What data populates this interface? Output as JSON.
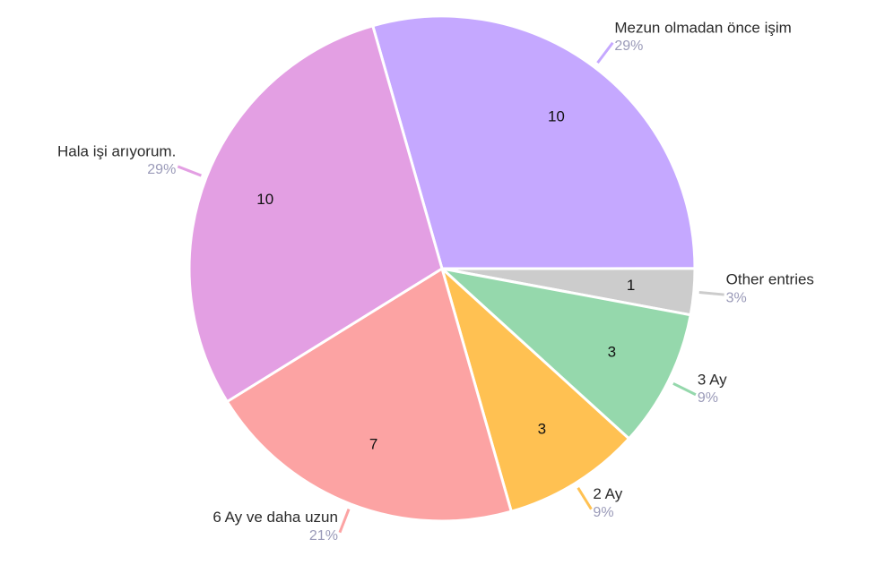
{
  "chart_data": {
    "type": "pie",
    "categories": [
      "Mezun olmadan önce işim",
      "Other entries",
      "3 Ay",
      "2 Ay",
      "6 Ay ve daha uzun",
      "Hala işi arıyorum."
    ],
    "values": [
      10,
      1,
      3,
      3,
      7,
      10
    ],
    "percent_labels": [
      "29%",
      "3%",
      "9%",
      "9%",
      "21%",
      "29%"
    ],
    "colors": [
      "#c5a8ff",
      "#cccccc",
      "#95d8ac",
      "#ffc152",
      "#fca3a3",
      "#e39fe3"
    ]
  }
}
